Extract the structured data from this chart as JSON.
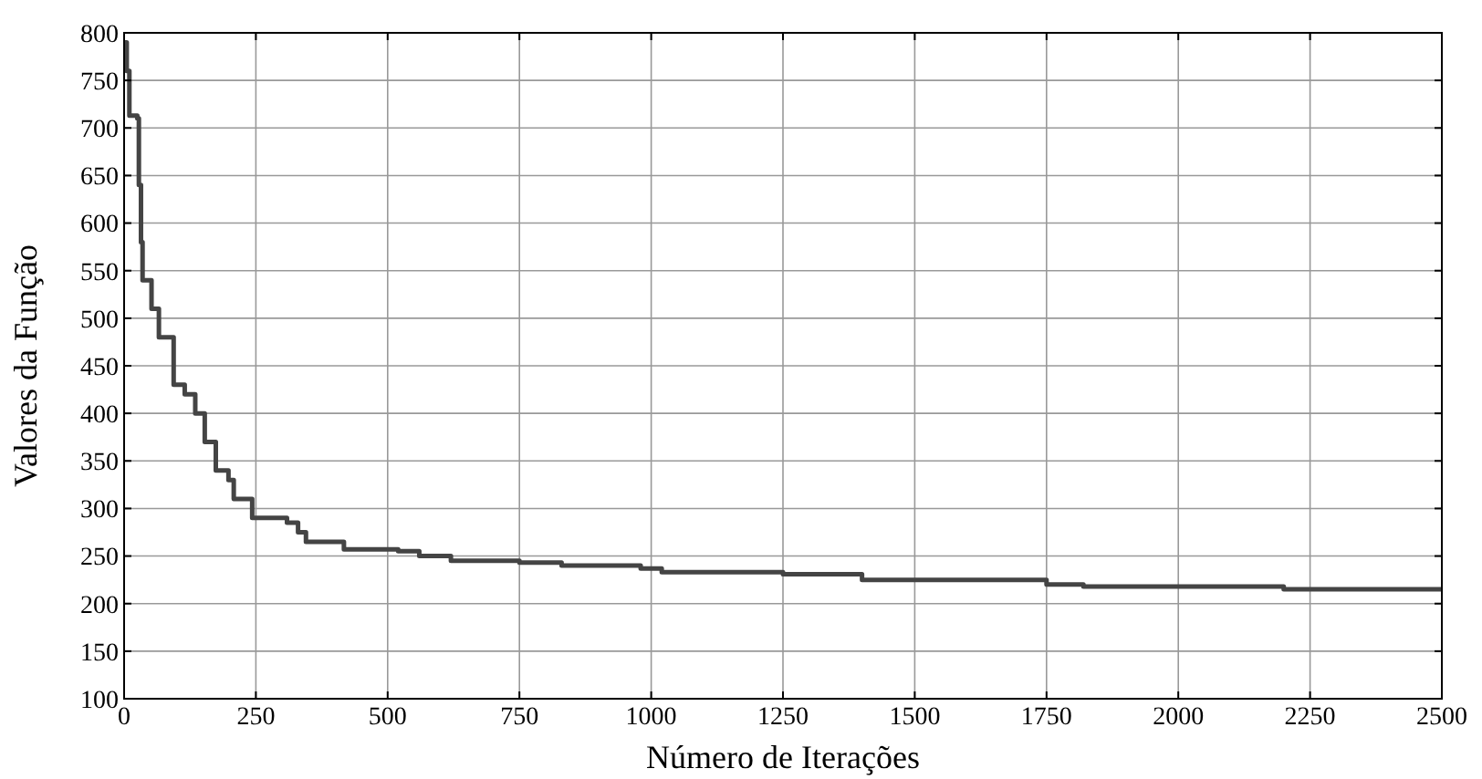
{
  "chart_data": {
    "type": "step",
    "xlabel": "Número de Iterações",
    "ylabel": "Valores da Função",
    "x": [
      0,
      5,
      10,
      25,
      28,
      32,
      35,
      52,
      66,
      94,
      115,
      135,
      153,
      174,
      198,
      208,
      243,
      309,
      330,
      345,
      417,
      520,
      560,
      620,
      750,
      830,
      980,
      1020,
      1250,
      1400,
      1750,
      1820,
      2200,
      2500
    ],
    "series": [
      {
        "color": "#444444",
        "values": [
          790,
          760,
          713,
          710,
          640,
          580,
          540,
          510,
          480,
          430,
          420,
          400,
          370,
          340,
          330,
          310,
          290,
          285,
          275,
          265,
          257,
          255,
          250,
          245,
          243,
          240,
          237,
          233,
          231,
          225,
          220,
          218,
          215,
          215
        ]
      }
    ],
    "xlim": [
      0,
      2500
    ],
    "xticks": [
      0,
      250,
      500,
      750,
      1000,
      1250,
      1500,
      1750,
      2000,
      2250,
      2500
    ],
    "ylim": [
      100,
      800
    ],
    "yticks": [
      100,
      150,
      200,
      250,
      300,
      350,
      400,
      450,
      500,
      550,
      600,
      650,
      700,
      750,
      800
    ],
    "grid": true
  }
}
